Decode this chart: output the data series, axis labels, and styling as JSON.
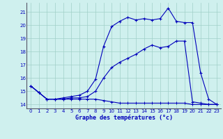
{
  "title": "Graphe des températures (°c)",
  "background_color": "#cff0ee",
  "grid_color": "#a0d0c8",
  "line_color": "#0000bb",
  "xlim": [
    -0.5,
    23.5
  ],
  "ylim": [
    13.7,
    21.7
  ],
  "yticks": [
    14,
    15,
    16,
    17,
    18,
    19,
    20,
    21
  ],
  "xticks": [
    0,
    1,
    2,
    3,
    4,
    5,
    6,
    7,
    8,
    9,
    10,
    11,
    12,
    13,
    14,
    15,
    16,
    17,
    18,
    19,
    20,
    21,
    22,
    23
  ],
  "series1_x": [
    0,
    1,
    2,
    3,
    4,
    5,
    6,
    7,
    8,
    9,
    10,
    11,
    12,
    13,
    14,
    15,
    16,
    17,
    18,
    19,
    20,
    21,
    22,
    23
  ],
  "series1_y": [
    15.4,
    14.9,
    14.4,
    14.4,
    14.5,
    14.6,
    14.7,
    15.0,
    15.9,
    18.4,
    19.9,
    20.3,
    20.6,
    20.4,
    20.5,
    20.4,
    20.5,
    21.3,
    20.3,
    20.2,
    20.2,
    16.4,
    14.4,
    14.0
  ],
  "series2_x": [
    0,
    1,
    2,
    3,
    4,
    5,
    6,
    7,
    8,
    9,
    10,
    11,
    12,
    13,
    14,
    15,
    16,
    17,
    18,
    19,
    20,
    21,
    22,
    23
  ],
  "series2_y": [
    15.4,
    14.9,
    14.4,
    14.4,
    14.4,
    14.5,
    14.5,
    14.6,
    15.0,
    16.0,
    16.8,
    17.2,
    17.5,
    17.8,
    18.2,
    18.5,
    18.3,
    18.4,
    18.8,
    18.8,
    14.2,
    14.1,
    14.0,
    14.0
  ],
  "series3_x": [
    0,
    1,
    2,
    3,
    4,
    5,
    6,
    7,
    8,
    9,
    10,
    11,
    12,
    13,
    14,
    15,
    16,
    17,
    18,
    19,
    20,
    21,
    22,
    23
  ],
  "series3_y": [
    15.4,
    14.9,
    14.4,
    14.4,
    14.4,
    14.4,
    14.4,
    14.4,
    14.4,
    14.3,
    14.2,
    14.1,
    14.1,
    14.1,
    14.1,
    14.1,
    14.1,
    14.1,
    14.1,
    14.1,
    14.0,
    14.0,
    14.0,
    14.0
  ]
}
